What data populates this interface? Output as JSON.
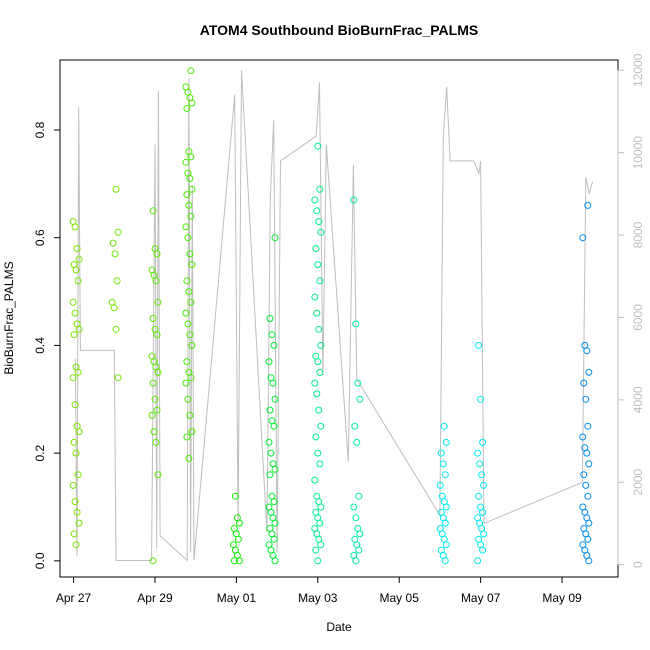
{
  "chart_data": {
    "type": "scatter",
    "title": "ATOM4 Southbound BioBurnFrac_PALMS",
    "xlabel": "Date",
    "ylabel": "BioBurnFrac_PALMS",
    "x_ticks": [
      "Apr 27",
      "Apr 29",
      "May 01",
      "May 03",
      "May 05",
      "May 07",
      "May 09"
    ],
    "x_tick_dates": [
      "2018-04-27",
      "2018-04-29",
      "2018-05-01",
      "2018-05-03",
      "2018-05-05",
      "2018-05-07",
      "2018-05-09"
    ],
    "xlim": [
      "2018-04-26T16:00",
      "2018-05-10T09:00"
    ],
    "y_ticks": [
      0.0,
      0.2,
      0.4,
      0.6,
      0.8
    ],
    "ylim": [
      -0.03,
      0.93
    ],
    "y2_ticks": [
      0,
      2000,
      4000,
      6000,
      8000,
      10000,
      12000
    ],
    "y2lim": [
      -300,
      12250
    ],
    "y2_color": "#bebebe",
    "grid": false,
    "legend": "none",
    "series": [
      {
        "type": "points",
        "groups": [
          {
            "day": "2018-04-27",
            "time": "01:30",
            "color": "#7ce600",
            "values": [
              0.63,
              0.62,
              0.58,
              0.56,
              0.55,
              0.54,
              0.52,
              0.48,
              0.46,
              0.44,
              0.43,
              0.42,
              0.36,
              0.35,
              0.34,
              0.29,
              0.25,
              0.24,
              0.22,
              0.2,
              0.16,
              0.14,
              0.11,
              0.09,
              0.07,
              0.05,
              0.03
            ]
          },
          {
            "day": "2018-04-28",
            "time": "00:30",
            "color": "#74e800",
            "values": [
              0.69,
              0.61,
              0.59,
              0.57,
              0.52,
              0.48,
              0.47,
              0.43,
              0.34
            ]
          },
          {
            "day": "2018-04-29",
            "time": "00:00",
            "color": "#5ae800",
            "values": [
              0.65,
              0.58,
              0.57,
              0.54,
              0.53,
              0.52,
              0.48,
              0.45,
              0.43,
              0.42,
              0.38,
              0.37,
              0.36,
              0.35,
              0.33,
              0.3,
              0.28,
              0.27,
              0.24,
              0.22,
              0.16,
              0.0
            ]
          },
          {
            "day": "2018-04-29",
            "time": "20:00",
            "color": "#48ec00",
            "values": [
              0.91,
              0.88,
              0.87,
              0.86,
              0.85,
              0.84,
              0.76,
              0.75,
              0.74,
              0.72,
              0.71,
              0.69,
              0.68,
              0.66,
              0.64,
              0.62,
              0.6,
              0.57,
              0.55,
              0.52,
              0.5,
              0.48,
              0.46,
              0.44,
              0.42,
              0.4,
              0.37,
              0.35,
              0.34,
              0.33,
              0.3,
              0.27,
              0.24,
              0.23,
              0.19
            ]
          },
          {
            "day": "2018-05-01",
            "time": "00:00",
            "color": "#0ef000",
            "values": [
              0.12,
              0.08,
              0.07,
              0.06,
              0.05,
              0.04,
              0.03,
              0.02,
              0.01,
              0.0,
              0.0
            ]
          },
          {
            "day": "2018-05-01",
            "time": "21:00",
            "color": "#00ee30",
            "values": [
              0.6,
              0.45,
              0.42,
              0.4,
              0.37,
              0.34,
              0.33,
              0.3,
              0.28,
              0.26,
              0.25,
              0.22,
              0.2,
              0.18,
              0.17,
              0.16,
              0.12,
              0.11,
              0.1,
              0.09,
              0.08,
              0.07,
              0.06,
              0.05,
              0.04,
              0.03,
              0.02,
              0.01,
              0.0
            ]
          },
          {
            "day": "2018-05-03",
            "time": "00:00",
            "color": "#00f08a",
            "values": [
              0.77,
              0.69,
              0.67,
              0.65,
              0.63,
              0.61,
              0.58,
              0.55,
              0.52,
              0.49,
              0.46,
              0.43,
              0.4,
              0.38,
              0.37,
              0.35,
              0.33,
              0.31,
              0.28,
              0.25,
              0.23,
              0.2,
              0.18,
              0.15,
              0.12,
              0.11,
              0.1,
              0.09,
              0.08,
              0.07,
              0.06,
              0.05,
              0.04,
              0.03,
              0.02,
              0.0
            ]
          },
          {
            "day": "2018-05-03",
            "time": "23:00",
            "color": "#00eea8",
            "values": [
              0.67,
              0.44,
              0.33,
              0.3,
              0.25,
              0.22,
              0.12,
              0.1,
              0.08,
              0.06,
              0.05,
              0.04,
              0.03,
              0.02,
              0.01,
              0.0
            ]
          },
          {
            "day": "2018-05-06",
            "time": "02:00",
            "color": "#00ecec",
            "values": [
              0.25,
              0.22,
              0.2,
              0.18,
              0.16,
              0.14,
              0.12,
              0.11,
              0.1,
              0.09,
              0.08,
              0.07,
              0.06,
              0.05,
              0.04,
              0.03,
              0.02,
              0.01,
              0.0
            ]
          },
          {
            "day": "2018-05-07",
            "time": "00:00",
            "color": "#00e8ee",
            "values": [
              0.4,
              0.3,
              0.22,
              0.2,
              0.18,
              0.16,
              0.14,
              0.12,
              0.1,
              0.09,
              0.08,
              0.07,
              0.06,
              0.05,
              0.04,
              0.03,
              0.02,
              0.0
            ]
          },
          {
            "day": "2018-05-09",
            "time": "14:00",
            "color": "#008cee",
            "values": [
              0.66,
              0.6,
              0.4,
              0.39,
              0.35,
              0.33,
              0.3,
              0.25,
              0.23,
              0.21,
              0.2,
              0.18,
              0.16,
              0.14,
              0.12,
              0.1,
              0.09,
              0.08,
              0.07,
              0.06,
              0.05,
              0.04,
              0.03,
              0.02,
              0.01,
              0.0
            ]
          }
        ]
      },
      {
        "type": "line",
        "axis": "right",
        "color": "#bebebe",
        "points": [
          [
            "2018-04-27T01:00",
            5000
          ],
          [
            "2018-04-27T02:00",
            200
          ],
          [
            "2018-04-27T03:00",
            11100
          ],
          [
            "2018-04-27T04:00",
            5200
          ],
          [
            "2018-04-27T06:00",
            5200
          ],
          [
            "2018-04-28T00:00",
            5200
          ],
          [
            "2018-04-28T01:00",
            100
          ],
          [
            "2018-04-28T22:00",
            100
          ],
          [
            "2018-04-29T00:00",
            10200
          ],
          [
            "2018-04-29T01:00",
            400
          ],
          [
            "2018-04-29T02:00",
            11500
          ],
          [
            "2018-04-29T03:00",
            700
          ],
          [
            "2018-04-29T19:00",
            100
          ],
          [
            "2018-04-29T20:00",
            11800
          ],
          [
            "2018-04-29T21:00",
            300
          ],
          [
            "2018-04-29T22:00",
            9200
          ],
          [
            "2018-04-29T23:00",
            100
          ],
          [
            "2018-04-30T23:00",
            11400
          ],
          [
            "2018-05-01T01:00",
            1000
          ],
          [
            "2018-05-01T03:00",
            12000
          ],
          [
            "2018-05-01T18:00",
            800
          ],
          [
            "2018-05-01T20:00",
            8900
          ],
          [
            "2018-05-01T22:00",
            10800
          ],
          [
            "2018-05-02T00:00",
            300
          ],
          [
            "2018-05-02T02:00",
            9800
          ],
          [
            "2018-05-02T23:00",
            10400
          ],
          [
            "2018-05-03T01:00",
            11700
          ],
          [
            "2018-05-03T03:00",
            4600
          ],
          [
            "2018-05-03T05:00",
            10200
          ],
          [
            "2018-05-03T18:00",
            2500
          ],
          [
            "2018-05-03T21:00",
            9700
          ],
          [
            "2018-05-03T23:00",
            4500
          ],
          [
            "2018-05-06T00:00",
            1200
          ],
          [
            "2018-05-06T02:00",
            10400
          ],
          [
            "2018-05-06T04:00",
            11600
          ],
          [
            "2018-05-06T06:00",
            9800
          ],
          [
            "2018-05-06T20:00",
            9800
          ],
          [
            "2018-05-06T23:00",
            9500
          ],
          [
            "2018-05-07T00:00",
            9800
          ],
          [
            "2018-05-07T02:00",
            1000
          ],
          [
            "2018-05-09T12:00",
            2000
          ],
          [
            "2018-05-09T14:00",
            9400
          ],
          [
            "2018-05-09T16:00",
            9000
          ],
          [
            "2018-05-09T18:00",
            9300
          ]
        ]
      }
    ]
  }
}
